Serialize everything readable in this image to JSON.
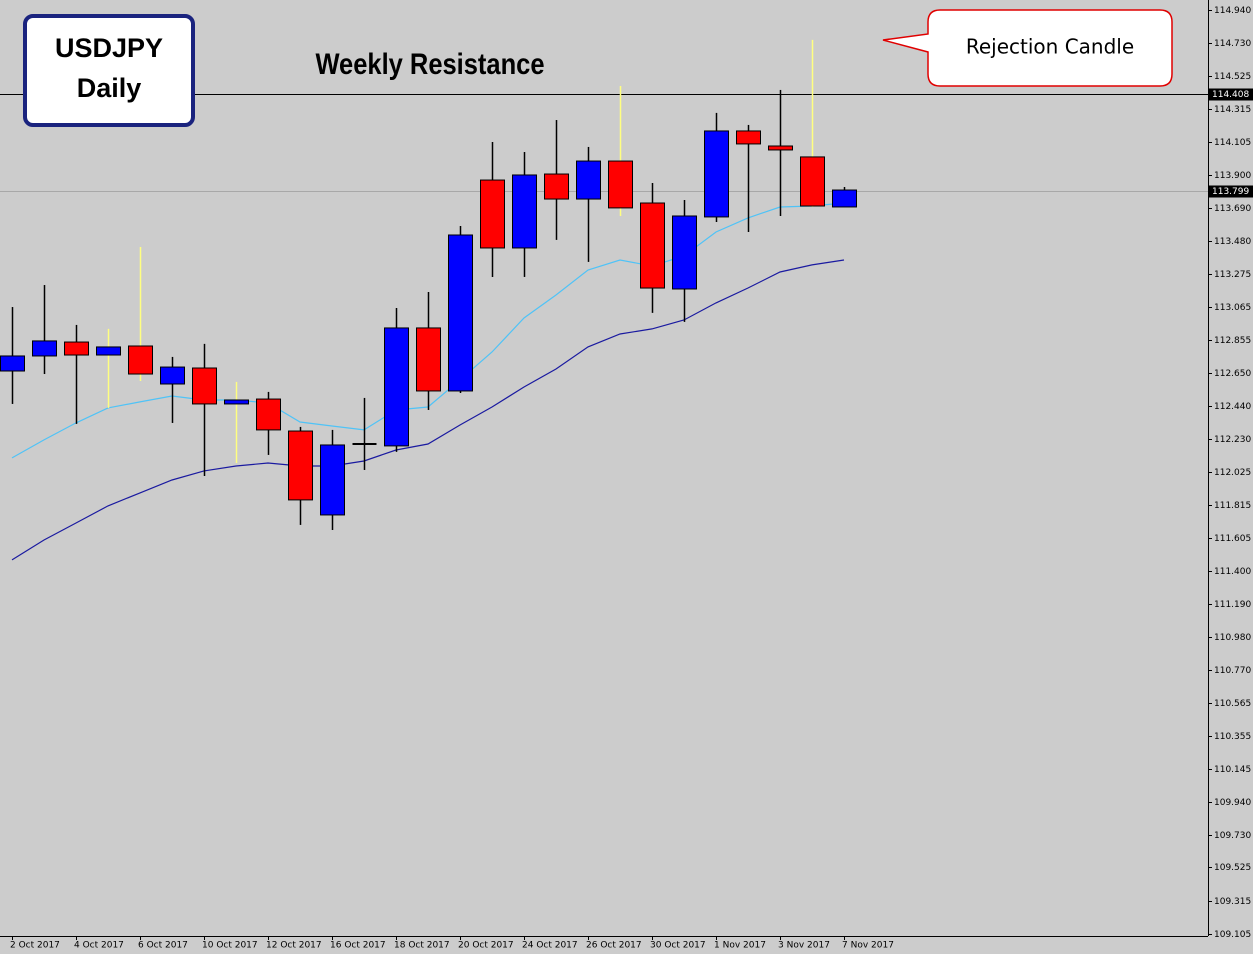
{
  "chart_data": {
    "type": "candlestick",
    "title": "USDJPY",
    "subtitle": "Daily",
    "annotations": [
      "Weekly Resistance",
      "Rejection Candle"
    ],
    "categories": [
      "2 Oct 2017",
      null,
      "4 Oct 2017",
      null,
      "6 Oct 2017",
      null,
      "10 Oct 2017",
      null,
      "12 Oct 2017",
      null,
      "16 Oct 2017",
      null,
      "18 Oct 2017",
      null,
      "20 Oct 2017",
      null,
      "24 Oct 2017",
      null,
      "26 Oct 2017",
      null,
      "30 Oct 2017",
      null,
      "1 Nov 2017",
      null,
      "3 Nov 2017",
      null,
      "7 Nov 2017"
    ],
    "open": [
      112.66,
      112.755,
      112.843,
      112.761,
      112.818,
      112.578,
      112.679,
      112.452,
      112.483,
      112.281,
      111.751,
      112.199,
      112.187,
      112.932,
      112.534,
      113.866,
      113.437,
      113.904,
      113.746,
      113.986,
      113.721,
      113.178,
      113.633,
      114.176,
      114.081,
      114.012,
      113.696
    ],
    "high": [
      113.064,
      113.203,
      112.951,
      112.926,
      113.443,
      112.749,
      112.831,
      112.591,
      112.528,
      112.307,
      112.288,
      112.49,
      113.058,
      113.159,
      113.576,
      114.106,
      114.043,
      114.245,
      114.075,
      114.46,
      113.847,
      113.74,
      114.29,
      114.214,
      114.435,
      114.751,
      113.822
    ],
    "low": [
      112.452,
      112.641,
      112.326,
      112.427,
      112.597,
      112.332,
      111.997,
      112.079,
      112.13,
      111.688,
      111.656,
      112.035,
      112.149,
      112.414,
      112.521,
      113.254,
      113.254,
      113.488,
      113.349,
      113.639,
      113.027,
      112.97,
      113.601,
      113.538,
      113.639,
      113.696,
      113.696
    ],
    "close": [
      112.755,
      112.85,
      112.761,
      112.812,
      112.641,
      112.685,
      112.452,
      112.477,
      112.288,
      111.846,
      112.193,
      112.199,
      112.932,
      112.534,
      113.519,
      113.437,
      113.898,
      113.746,
      113.986,
      113.69,
      113.184,
      113.639,
      114.176,
      114.094,
      114.056,
      113.702,
      113.803
    ],
    "up_color": "#0000ff",
    "down_color": "#ff0000",
    "doji_color": "#000000",
    "highlight_color": "#ffff80",
    "highlighted": [
      3,
      4,
      7,
      19,
      25
    ],
    "lines": [
      {
        "color": "#4fc3f7",
        "values": [
          112.111,
          112.225,
          112.332,
          112.427,
          112.465,
          112.502,
          112.477,
          112.477,
          112.458,
          112.338,
          112.313,
          112.288,
          112.414,
          112.433,
          112.604,
          112.78,
          112.995,
          113.14,
          113.298,
          113.361,
          113.323,
          113.387,
          113.538,
          113.627,
          113.696,
          113.702,
          113.721
        ]
      },
      {
        "color": "#1a1aa0",
        "values": [
          111.467,
          111.593,
          111.7,
          111.808,
          111.89,
          111.972,
          112.029,
          112.06,
          112.079,
          112.06,
          112.06,
          112.092,
          112.161,
          112.199,
          112.319,
          112.433,
          112.559,
          112.673,
          112.812,
          112.894,
          112.926,
          112.982,
          113.09,
          113.184,
          113.285,
          113.33,
          113.361
        ]
      }
    ],
    "hlines": [
      {
        "value": 114.408,
        "color": "#000000"
      },
      {
        "value": 113.799,
        "color": "#a8a8a8"
      }
    ],
    "ylim": [
      109.092,
      115.003
    ],
    "yticks": [
      {
        "value": 114.94,
        "label": "114.940"
      },
      {
        "value": 114.73,
        "label": "114.730"
      },
      114.525,
      114.315,
      114.105,
      {
        "value": 113.9,
        "label": "113.900"
      },
      {
        "value": 113.69,
        "label": "113.690"
      },
      {
        "value": 113.48,
        "label": "113.480"
      },
      113.275,
      113.065,
      112.855,
      {
        "value": 112.65,
        "label": "112.650"
      },
      {
        "value": 112.44,
        "label": "112.440"
      },
      {
        "value": 112.23,
        "label": "112.230"
      },
      112.025,
      111.815,
      111.605,
      {
        "value": 111.4,
        "label": "111.400"
      },
      {
        "value": 111.19,
        "label": "111.190"
      },
      {
        "value": 110.98,
        "label": "110.980"
      },
      {
        "value": 110.77,
        "label": "110.770"
      },
      110.565,
      110.355,
      110.145,
      {
        "value": 109.94,
        "label": "109.940"
      },
      {
        "value": 109.73,
        "label": "109.730"
      },
      109.525,
      109.315,
      109.105
    ]
  }
}
